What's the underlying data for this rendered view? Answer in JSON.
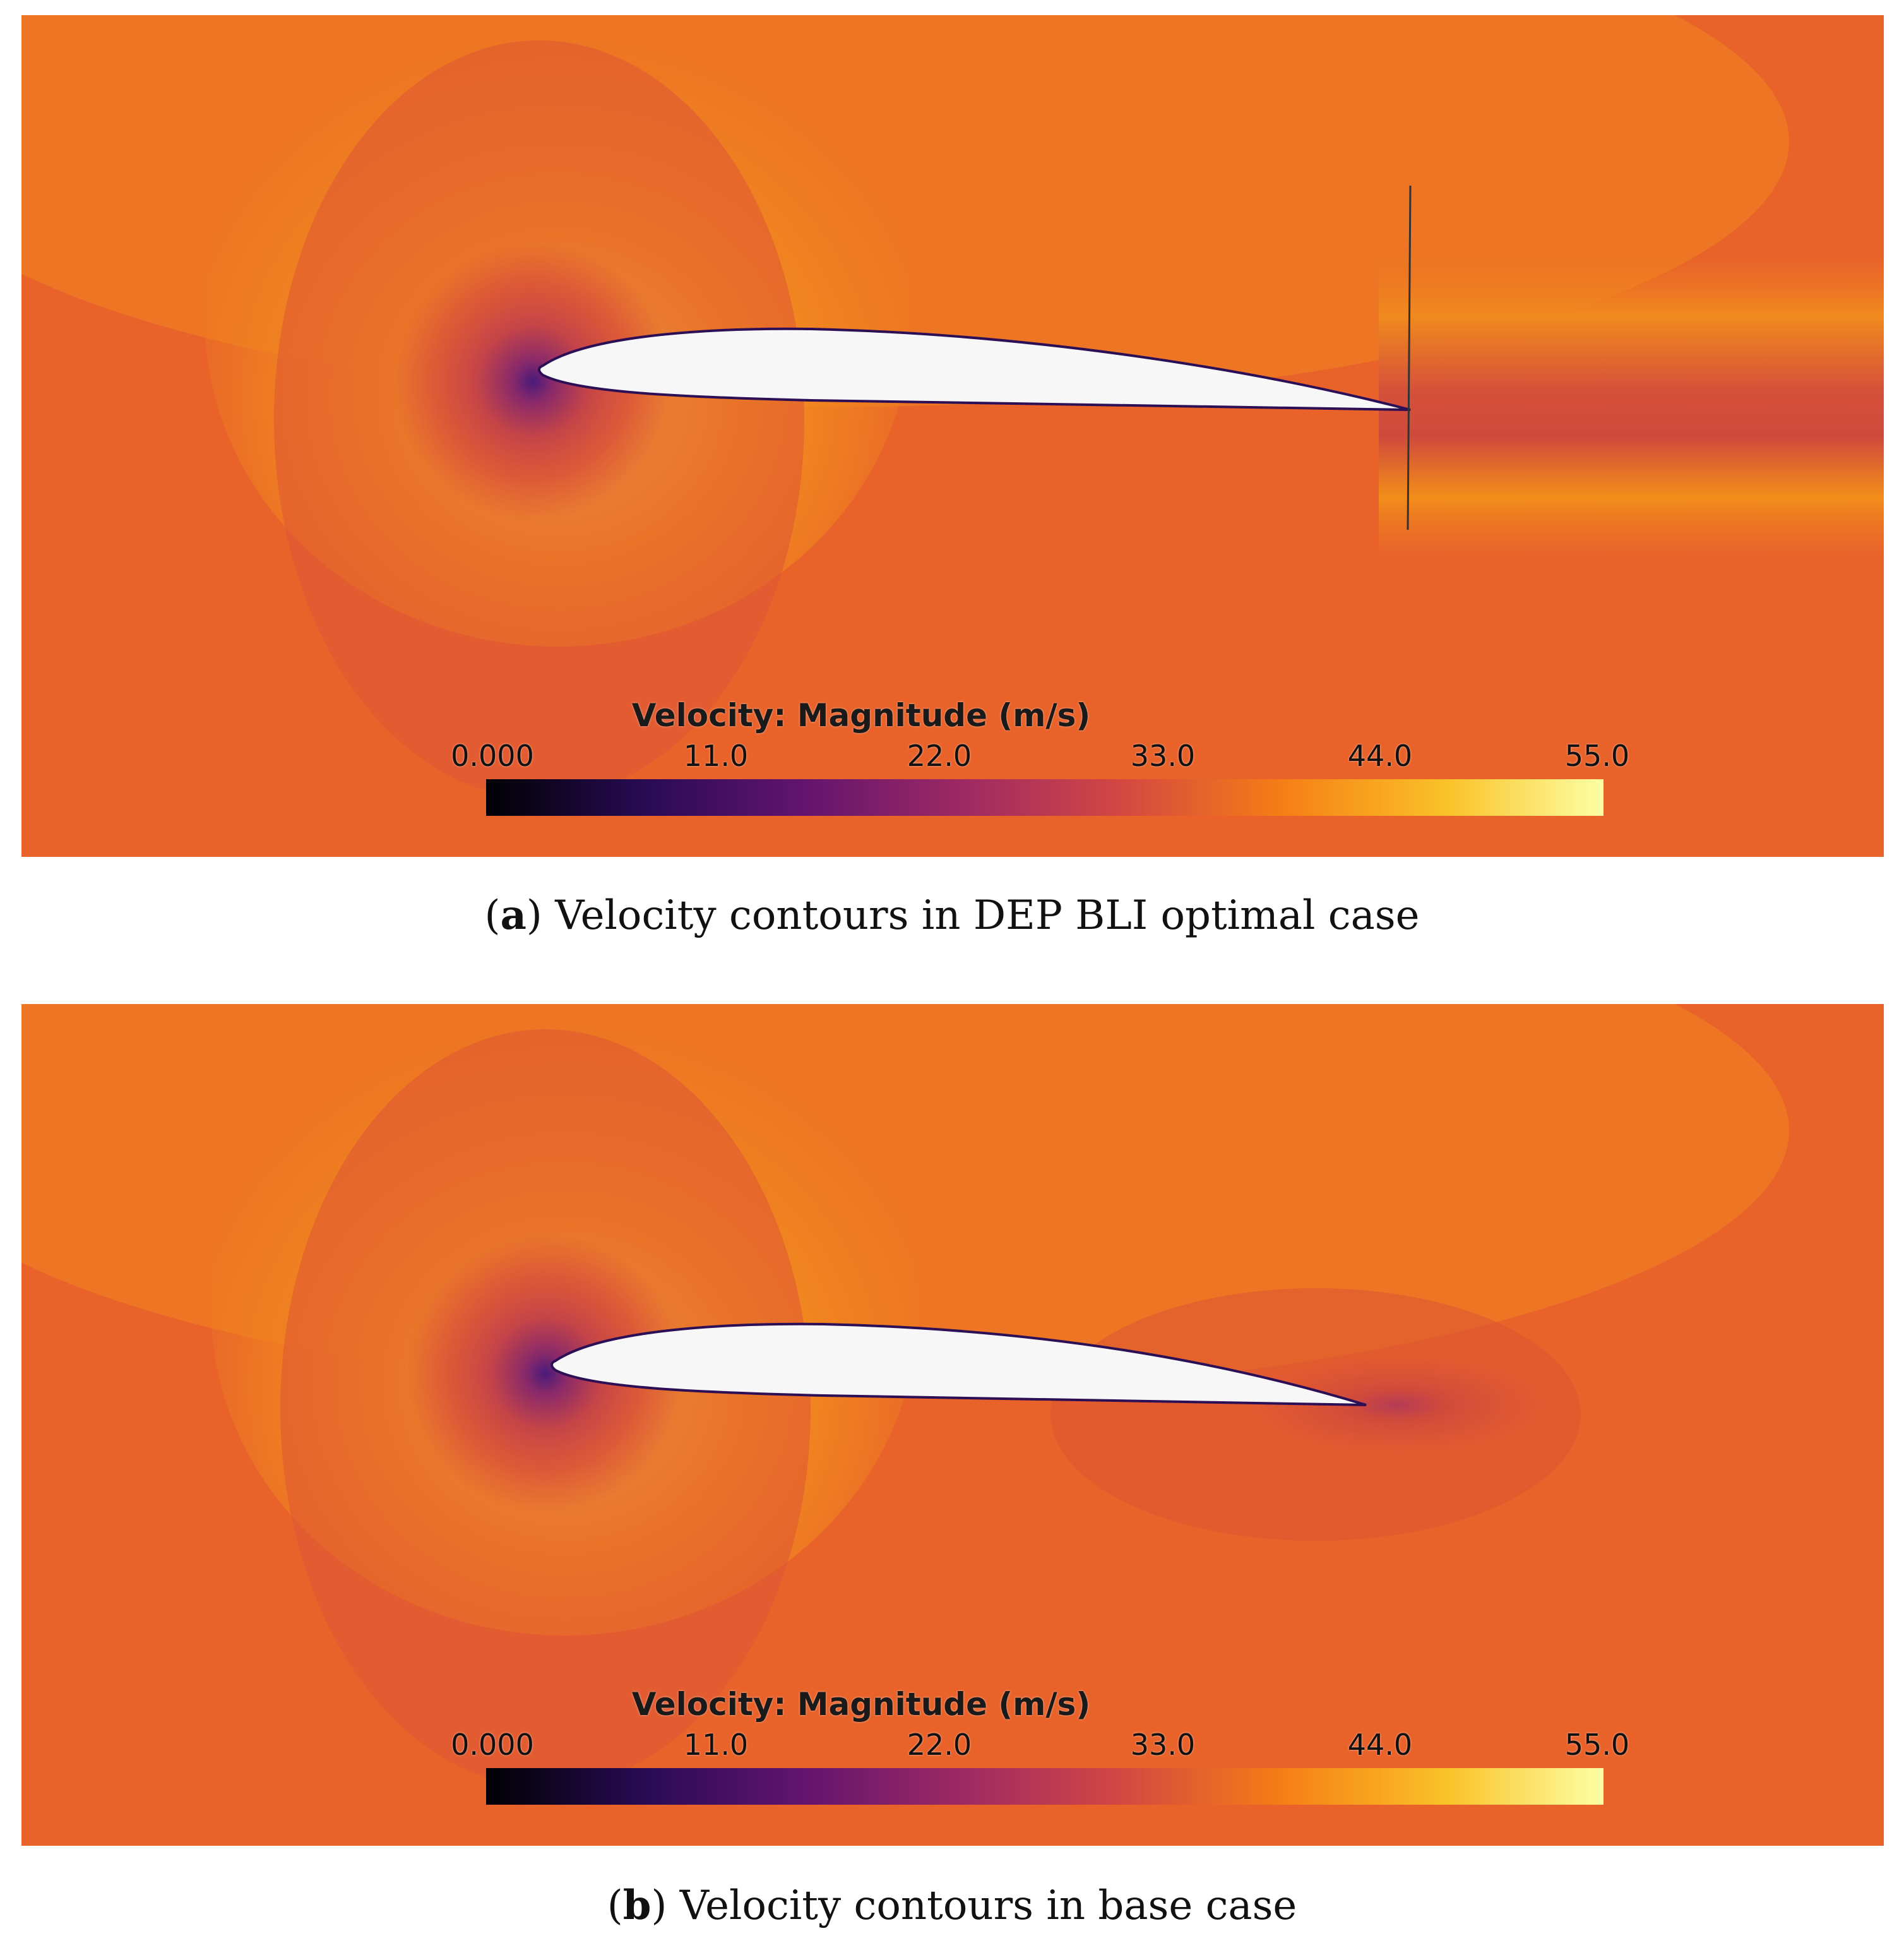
{
  "panels": [
    {
      "id": "a",
      "legend": {
        "title": "Velocity: Magnitude (m/s)",
        "ticks": [
          "0.000",
          "11.0",
          "22.0",
          "33.0",
          "44.0",
          "55.0"
        ],
        "min": 0,
        "max": 55
      },
      "caption": {
        "letter": "a",
        "text": "Velocity contours in DEP BLI optimal case"
      },
      "has_propulsor_disk": true
    },
    {
      "id": "b",
      "legend": {
        "title": "Velocity: Magnitude (m/s)",
        "ticks": [
          "0.000",
          "11.0",
          "22.0",
          "33.0",
          "44.0",
          "55.0"
        ],
        "min": 0,
        "max": 55
      },
      "caption": {
        "letter": "b",
        "text": "Velocity contours in base case"
      },
      "has_propulsor_disk": false
    }
  ],
  "colormap": [
    "#000004",
    "#280b53",
    "#65156e",
    "#9f2a63",
    "#d44842",
    "#f57d15",
    "#fac228",
    "#fcffa4"
  ]
}
